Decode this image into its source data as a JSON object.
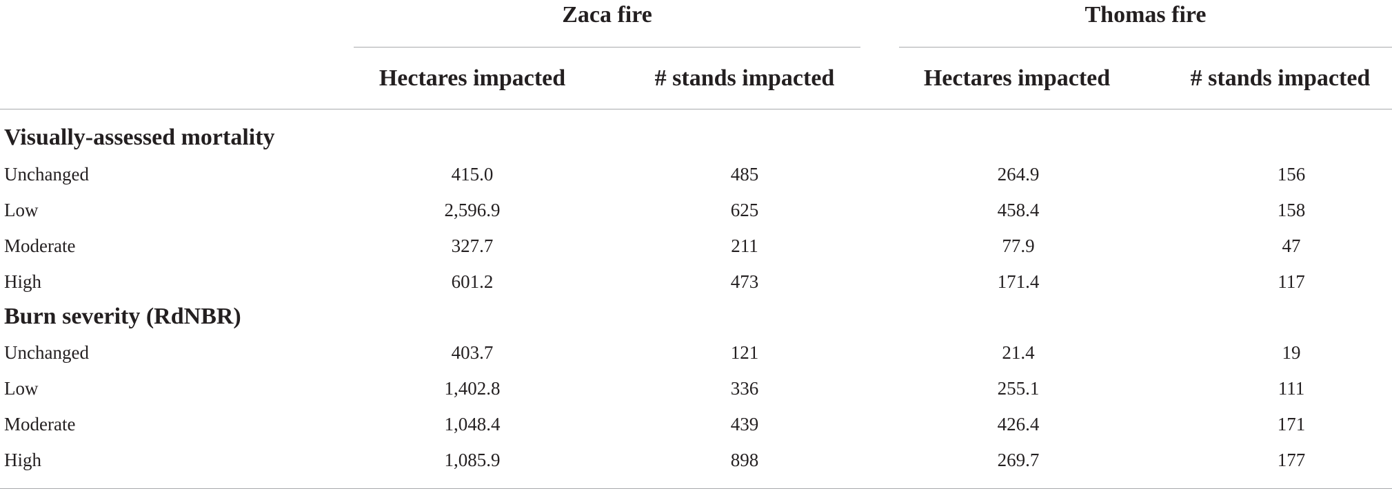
{
  "table": {
    "group_headers": [
      "Zaca fire",
      "Thomas fire"
    ],
    "column_headers": [
      "Hectares impacted",
      "# stands impacted",
      "Hectares impacted",
      "# stands impacted"
    ],
    "sections": [
      {
        "title": "Visually-assessed mortality",
        "rows": [
          {
            "label": "Unchanged",
            "values": [
              "415.0",
              "485",
              "264.9",
              "156"
            ]
          },
          {
            "label": "Low",
            "values": [
              "2,596.9",
              "625",
              "458.4",
              "158"
            ]
          },
          {
            "label": "Moderate",
            "values": [
              "327.7",
              "211",
              "77.9",
              "47"
            ]
          },
          {
            "label": "High",
            "values": [
              "601.2",
              "473",
              "171.4",
              "117"
            ]
          }
        ]
      },
      {
        "title": "Burn severity (RdNBR)",
        "rows": [
          {
            "label": "Unchanged",
            "values": [
              "403.7",
              "121",
              "21.4",
              "19"
            ]
          },
          {
            "label": "Low",
            "values": [
              "1,402.8",
              "336",
              "255.1",
              "111"
            ]
          },
          {
            "label": "Moderate",
            "values": [
              "1,048.4",
              "439",
              "426.4",
              "171"
            ]
          },
          {
            "label": "High",
            "values": [
              "1,085.9",
              "898",
              "269.7",
              "177"
            ]
          }
        ]
      }
    ]
  }
}
